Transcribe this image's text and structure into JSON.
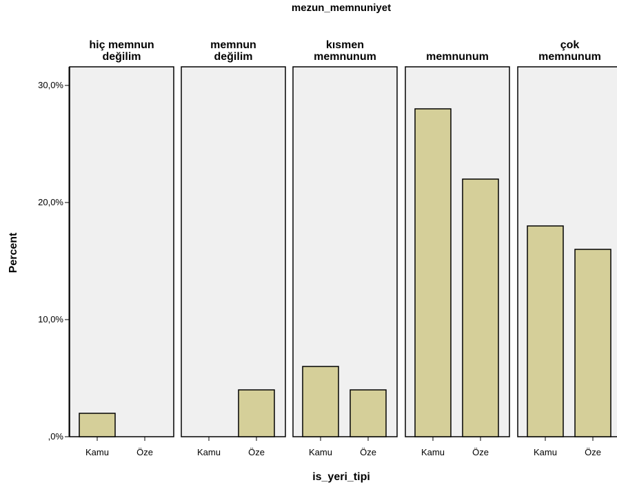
{
  "chart_data": {
    "type": "bar",
    "title": "mezun_memnuniyet",
    "xlabel": "is_yeri_tipi",
    "ylabel": "Percent",
    "ylim": [
      0,
      31.5
    ],
    "yticks": [
      0,
      10,
      20,
      30
    ],
    "ytick_labels": [
      ",0%",
      "10,0%",
      "20,0%",
      "30,0%"
    ],
    "categories": [
      "Kamu",
      "Öze"
    ],
    "panels": [
      {
        "name_lines": [
          "hiç memnun",
          "değilim"
        ],
        "values": [
          2,
          0
        ]
      },
      {
        "name_lines": [
          "memnun",
          "değilim"
        ],
        "values": [
          0,
          4
        ]
      },
      {
        "name_lines": [
          "kısmen",
          "memnunum"
        ],
        "values": [
          6,
          4
        ]
      },
      {
        "name_lines": [
          "memnunum"
        ],
        "values": [
          28,
          22
        ]
      },
      {
        "name_lines": [
          "çok",
          "memnunum"
        ],
        "values": [
          18,
          16
        ]
      }
    ],
    "colors": {
      "bar": "#d5cf99",
      "panel_bg": "#f0f0f0",
      "border": "#000000"
    },
    "grid": false
  }
}
